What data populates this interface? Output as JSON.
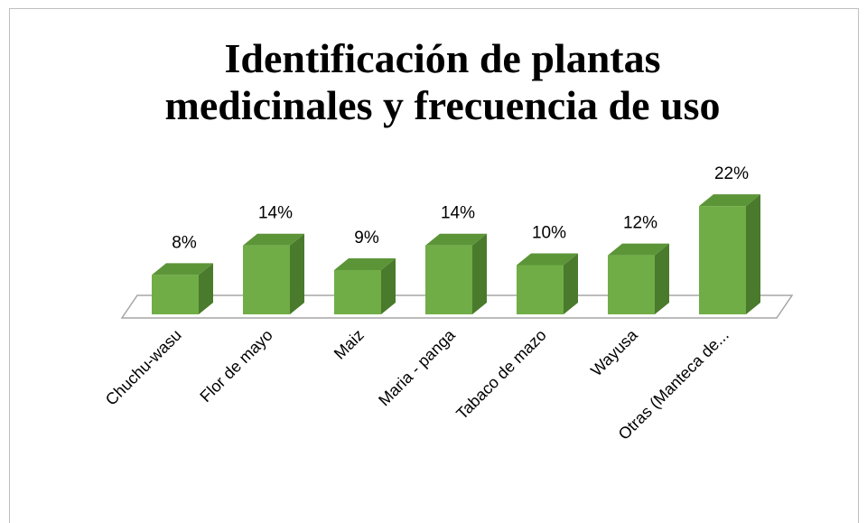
{
  "chart_data": {
    "type": "bar3d",
    "title": [
      "Identificación de plantas",
      "medicinales y frecuencia de uso"
    ],
    "categories": [
      "Chuchu-wasu",
      "Flor de mayo",
      "Maiz",
      "Maria - panga",
      "Tabaco de mazo",
      "Wayusa",
      "Otras (Manteca de..."
    ],
    "values": [
      8,
      14,
      9,
      14,
      10,
      12,
      22
    ],
    "value_labels": [
      "8%",
      "14%",
      "9%",
      "14%",
      "10%",
      "12%",
      "22%"
    ],
    "color": "#70ad47"
  }
}
